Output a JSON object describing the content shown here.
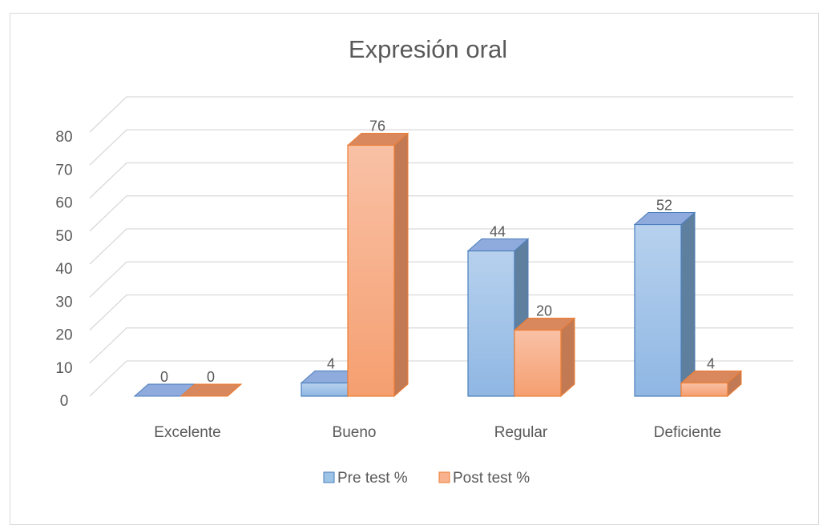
{
  "chart_data": {
    "type": "bar",
    "title": "Expresión oral",
    "categories": [
      "Excelente",
      "Bueno",
      "Regular",
      "Deficiente"
    ],
    "series": [
      {
        "name": "Pre test %",
        "values": [
          0,
          4,
          44,
          52
        ]
      },
      {
        "name": "Post test %",
        "values": [
          0,
          76,
          20,
          4
        ]
      }
    ],
    "ylim": [
      0,
      80
    ],
    "yticks": [
      "0",
      "10",
      "20",
      "30",
      "40",
      "50",
      "60",
      "70",
      "80"
    ],
    "data_labels": true,
    "grid": true,
    "legend": "bottom",
    "style": "3d-column",
    "colors": {
      "pre_front": "#9dc3e6",
      "pre_top": "#8faadc",
      "pre_side": "#5f7f9f",
      "pre_edge": "#4a7ebb",
      "post_front": "#f8b28e",
      "post_top": "#d9875d",
      "post_side": "#c27a55",
      "post_edge": "#ed7d31"
    }
  }
}
